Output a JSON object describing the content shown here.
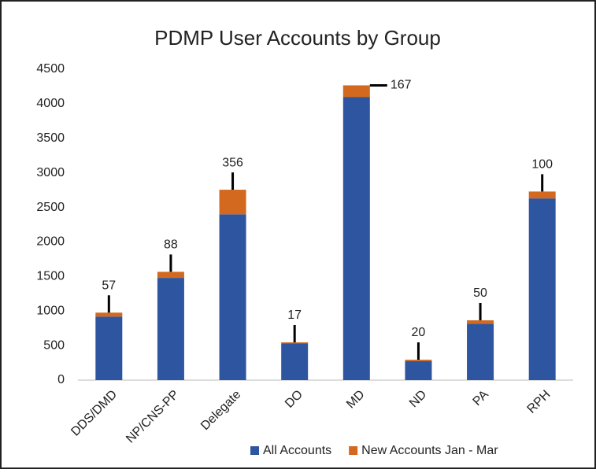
{
  "chart_data": {
    "type": "stacked_bar",
    "title": "PDMP User Accounts by Group",
    "categories": [
      "DDS/DMD",
      "NP/CNS-PP",
      "Delegate",
      "DO",
      "MD",
      "ND",
      "PA",
      "RPH"
    ],
    "series": [
      {
        "name": "All Accounts",
        "color": "#2e55a0",
        "values": [
          920,
          1480,
          2400,
          530,
          4100,
          276,
          816,
          2630
        ]
      },
      {
        "name": "New Accounts Jan - Mar",
        "color": "#d2691e",
        "values": [
          57,
          88,
          356,
          17,
          167,
          20,
          50,
          100
        ]
      }
    ],
    "ylim": [
      0,
      4500
    ],
    "yticks": [
      0,
      500,
      1000,
      1500,
      2000,
      2500,
      3000,
      3500,
      4000,
      4500
    ],
    "grid": false
  }
}
